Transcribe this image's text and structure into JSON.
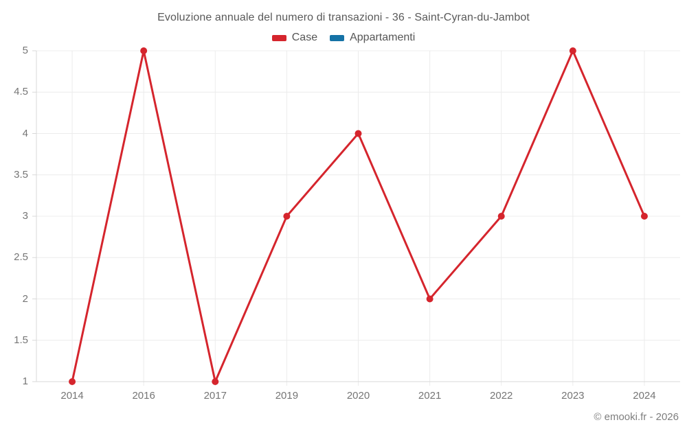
{
  "chart_data": {
    "type": "line",
    "title": "Evoluzione annuale del numero di transazioni - 36 - Saint-Cyran-du-Jambot",
    "categories": [
      "2014",
      "2016",
      "2017",
      "2019",
      "2020",
      "2021",
      "2022",
      "2023",
      "2024"
    ],
    "series": [
      {
        "name": "Case",
        "color": "#d5252d",
        "values": [
          1,
          5,
          1,
          3,
          4,
          2,
          3,
          5,
          3
        ]
      },
      {
        "name": "Appartamenti",
        "color": "#1572a6",
        "values": []
      }
    ],
    "ylim": [
      1,
      5
    ],
    "yticks": [
      1,
      1.5,
      2,
      2.5,
      3,
      3.5,
      4,
      4.5,
      5
    ],
    "xlabel": "",
    "ylabel": "",
    "grid": true,
    "legend_position": "top"
  },
  "copyright": "© emooki.fr - 2026",
  "colors": {
    "grid": "#ececec",
    "axis": "#d8d8d8",
    "title_text": "#595959",
    "axis_text": "#757575"
  }
}
